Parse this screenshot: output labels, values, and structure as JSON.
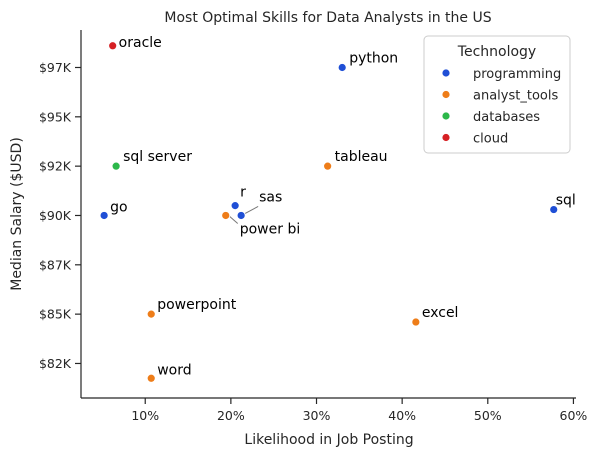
{
  "chart_data": {
    "type": "scatter",
    "title": "Most Optimal Skills for Data Analysts in the US",
    "xlabel": "Likelihood in Job Posting",
    "ylabel": "Median Salary ($USD)",
    "xlim": [
      0.025,
      0.603
    ],
    "ylim": [
      80750,
      99400
    ],
    "xticks": [
      {
        "value": 0.1,
        "label": "10%"
      },
      {
        "value": 0.2,
        "label": "20%"
      },
      {
        "value": 0.3,
        "label": "30%"
      },
      {
        "value": 0.4,
        "label": "40%"
      },
      {
        "value": 0.5,
        "label": "50%"
      },
      {
        "value": 0.6,
        "label": "60%"
      }
    ],
    "yticks": [
      {
        "value": 82500,
        "label": "$82K"
      },
      {
        "value": 85000,
        "label": "$85K"
      },
      {
        "value": 87500,
        "label": "$87K"
      },
      {
        "value": 90000,
        "label": "$90K"
      },
      {
        "value": 92500,
        "label": "$92K"
      },
      {
        "value": 95000,
        "label": "$95K"
      },
      {
        "value": 97500,
        "label": "$97K"
      }
    ],
    "legend": {
      "title": "Technology",
      "placement": "top-right",
      "entries": [
        {
          "name": "programming",
          "color": "#1f4fd6"
        },
        {
          "name": "analyst_tools",
          "color": "#ee7d19"
        },
        {
          "name": "databases",
          "color": "#2cb84a"
        },
        {
          "name": "cloud",
          "color": "#d62024"
        }
      ]
    },
    "points": [
      {
        "skill": "oracle",
        "x": 0.062,
        "y": 98600,
        "category": "cloud"
      },
      {
        "skill": "python",
        "x": 0.33,
        "y": 97500,
        "category": "programming"
      },
      {
        "skill": "sql server",
        "x": 0.066,
        "y": 92500,
        "category": "databases"
      },
      {
        "skill": "tableau",
        "x": 0.313,
        "y": 92500,
        "category": "analyst_tools"
      },
      {
        "skill": "r",
        "x": 0.205,
        "y": 90500,
        "category": "programming"
      },
      {
        "skill": "sas",
        "x": 0.212,
        "y": 90000,
        "category": "programming"
      },
      {
        "skill": "power bi",
        "x": 0.194,
        "y": 90000,
        "category": "analyst_tools"
      },
      {
        "skill": "go",
        "x": 0.052,
        "y": 90000,
        "category": "programming"
      },
      {
        "skill": "sql",
        "x": 0.577,
        "y": 90300,
        "category": "programming"
      },
      {
        "skill": "powerpoint",
        "x": 0.107,
        "y": 85000,
        "category": "analyst_tools"
      },
      {
        "skill": "excel",
        "x": 0.416,
        "y": 84600,
        "category": "analyst_tools"
      },
      {
        "skill": "word",
        "x": 0.107,
        "y": 81750,
        "category": "analyst_tools"
      }
    ]
  }
}
